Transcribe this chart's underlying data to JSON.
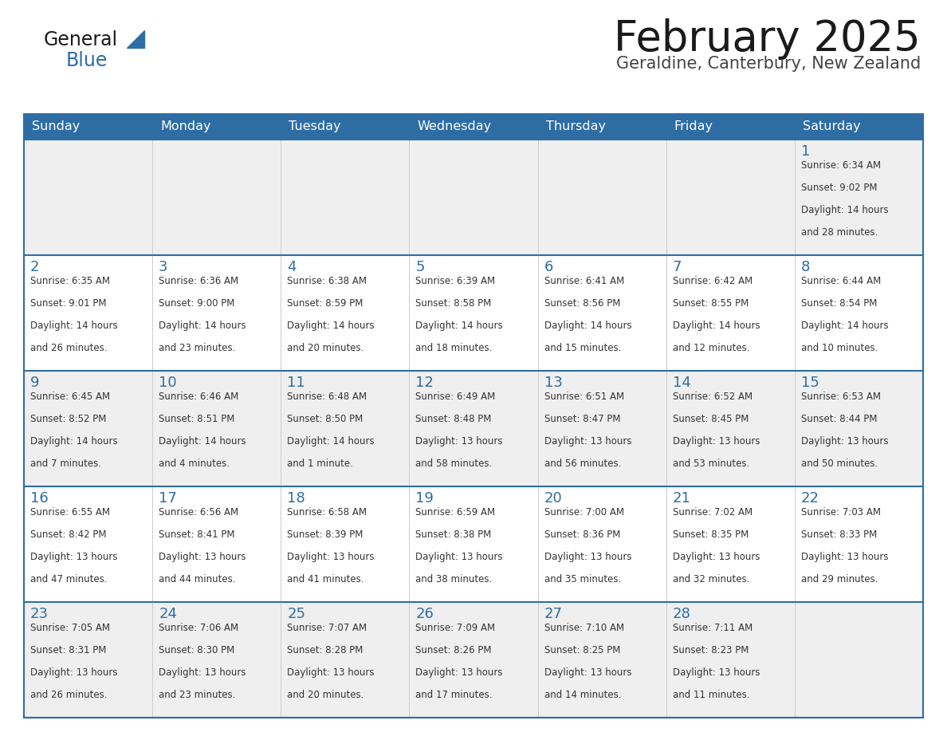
{
  "title": "February 2025",
  "subtitle": "Geraldine, Canterbury, New Zealand",
  "header_bg": "#2E6DA4",
  "header_text": "#FFFFFF",
  "day_names": [
    "Sunday",
    "Monday",
    "Tuesday",
    "Wednesday",
    "Thursday",
    "Friday",
    "Saturday"
  ],
  "row_bg_odd": "#EFEFEF",
  "row_bg_even": "#FFFFFF",
  "cell_border_color": "#2E6DA4",
  "day_num_color": "#2E6DA4",
  "info_color": "#333333",
  "logo_general_color": "#1A1A1A",
  "logo_blue_color": "#2E6DA4",
  "calendar": [
    [
      null,
      null,
      null,
      null,
      null,
      null,
      {
        "day": "1",
        "sunrise": "6:34 AM",
        "sunset": "9:02 PM",
        "daylight_line1": "Daylight: 14 hours",
        "daylight_line2": "and 28 minutes."
      }
    ],
    [
      {
        "day": "2",
        "sunrise": "6:35 AM",
        "sunset": "9:01 PM",
        "daylight_line1": "Daylight: 14 hours",
        "daylight_line2": "and 26 minutes."
      },
      {
        "day": "3",
        "sunrise": "6:36 AM",
        "sunset": "9:00 PM",
        "daylight_line1": "Daylight: 14 hours",
        "daylight_line2": "and 23 minutes."
      },
      {
        "day": "4",
        "sunrise": "6:38 AM",
        "sunset": "8:59 PM",
        "daylight_line1": "Daylight: 14 hours",
        "daylight_line2": "and 20 minutes."
      },
      {
        "day": "5",
        "sunrise": "6:39 AM",
        "sunset": "8:58 PM",
        "daylight_line1": "Daylight: 14 hours",
        "daylight_line2": "and 18 minutes."
      },
      {
        "day": "6",
        "sunrise": "6:41 AM",
        "sunset": "8:56 PM",
        "daylight_line1": "Daylight: 14 hours",
        "daylight_line2": "and 15 minutes."
      },
      {
        "day": "7",
        "sunrise": "6:42 AM",
        "sunset": "8:55 PM",
        "daylight_line1": "Daylight: 14 hours",
        "daylight_line2": "and 12 minutes."
      },
      {
        "day": "8",
        "sunrise": "6:44 AM",
        "sunset": "8:54 PM",
        "daylight_line1": "Daylight: 14 hours",
        "daylight_line2": "and 10 minutes."
      }
    ],
    [
      {
        "day": "9",
        "sunrise": "6:45 AM",
        "sunset": "8:52 PM",
        "daylight_line1": "Daylight: 14 hours",
        "daylight_line2": "and 7 minutes."
      },
      {
        "day": "10",
        "sunrise": "6:46 AM",
        "sunset": "8:51 PM",
        "daylight_line1": "Daylight: 14 hours",
        "daylight_line2": "and 4 minutes."
      },
      {
        "day": "11",
        "sunrise": "6:48 AM",
        "sunset": "8:50 PM",
        "daylight_line1": "Daylight: 14 hours",
        "daylight_line2": "and 1 minute."
      },
      {
        "day": "12",
        "sunrise": "6:49 AM",
        "sunset": "8:48 PM",
        "daylight_line1": "Daylight: 13 hours",
        "daylight_line2": "and 58 minutes."
      },
      {
        "day": "13",
        "sunrise": "6:51 AM",
        "sunset": "8:47 PM",
        "daylight_line1": "Daylight: 13 hours",
        "daylight_line2": "and 56 minutes."
      },
      {
        "day": "14",
        "sunrise": "6:52 AM",
        "sunset": "8:45 PM",
        "daylight_line1": "Daylight: 13 hours",
        "daylight_line2": "and 53 minutes."
      },
      {
        "day": "15",
        "sunrise": "6:53 AM",
        "sunset": "8:44 PM",
        "daylight_line1": "Daylight: 13 hours",
        "daylight_line2": "and 50 minutes."
      }
    ],
    [
      {
        "day": "16",
        "sunrise": "6:55 AM",
        "sunset": "8:42 PM",
        "daylight_line1": "Daylight: 13 hours",
        "daylight_line2": "and 47 minutes."
      },
      {
        "day": "17",
        "sunrise": "6:56 AM",
        "sunset": "8:41 PM",
        "daylight_line1": "Daylight: 13 hours",
        "daylight_line2": "and 44 minutes."
      },
      {
        "day": "18",
        "sunrise": "6:58 AM",
        "sunset": "8:39 PM",
        "daylight_line1": "Daylight: 13 hours",
        "daylight_line2": "and 41 minutes."
      },
      {
        "day": "19",
        "sunrise": "6:59 AM",
        "sunset": "8:38 PM",
        "daylight_line1": "Daylight: 13 hours",
        "daylight_line2": "and 38 minutes."
      },
      {
        "day": "20",
        "sunrise": "7:00 AM",
        "sunset": "8:36 PM",
        "daylight_line1": "Daylight: 13 hours",
        "daylight_line2": "and 35 minutes."
      },
      {
        "day": "21",
        "sunrise": "7:02 AM",
        "sunset": "8:35 PM",
        "daylight_line1": "Daylight: 13 hours",
        "daylight_line2": "and 32 minutes."
      },
      {
        "day": "22",
        "sunrise": "7:03 AM",
        "sunset": "8:33 PM",
        "daylight_line1": "Daylight: 13 hours",
        "daylight_line2": "and 29 minutes."
      }
    ],
    [
      {
        "day": "23",
        "sunrise": "7:05 AM",
        "sunset": "8:31 PM",
        "daylight_line1": "Daylight: 13 hours",
        "daylight_line2": "and 26 minutes."
      },
      {
        "day": "24",
        "sunrise": "7:06 AM",
        "sunset": "8:30 PM",
        "daylight_line1": "Daylight: 13 hours",
        "daylight_line2": "and 23 minutes."
      },
      {
        "day": "25",
        "sunrise": "7:07 AM",
        "sunset": "8:28 PM",
        "daylight_line1": "Daylight: 13 hours",
        "daylight_line2": "and 20 minutes."
      },
      {
        "day": "26",
        "sunrise": "7:09 AM",
        "sunset": "8:26 PM",
        "daylight_line1": "Daylight: 13 hours",
        "daylight_line2": "and 17 minutes."
      },
      {
        "day": "27",
        "sunrise": "7:10 AM",
        "sunset": "8:25 PM",
        "daylight_line1": "Daylight: 13 hours",
        "daylight_line2": "and 14 minutes."
      },
      {
        "day": "28",
        "sunrise": "7:11 AM",
        "sunset": "8:23 PM",
        "daylight_line1": "Daylight: 13 hours",
        "daylight_line2": "and 11 minutes."
      },
      null
    ]
  ]
}
